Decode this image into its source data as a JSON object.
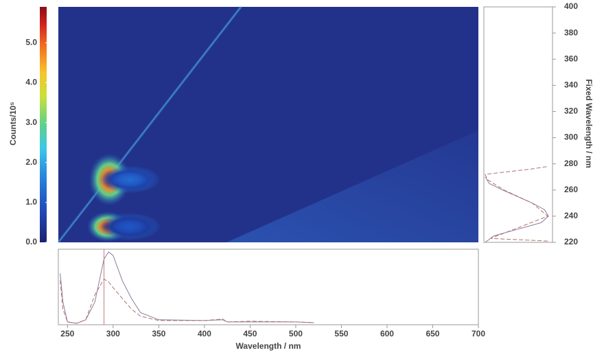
{
  "chart_data": [
    {
      "type": "heatmap",
      "colorbar_label": "Counts/10⁵",
      "clim": [
        0,
        5.9
      ],
      "cticks": [
        {
          "value": 0,
          "label": "0.0"
        },
        {
          "value": 1,
          "label": "1.0"
        },
        {
          "value": 2,
          "label": "2.0"
        },
        {
          "value": 3,
          "label": "3.0"
        },
        {
          "value": 4,
          "label": "4.0"
        },
        {
          "value": 5,
          "label": "5.0"
        }
      ],
      "xlim": [
        240,
        700
      ],
      "ylim": [
        220,
        400
      ],
      "peaks": {
        "x": [
          294,
          296,
          318,
          318
        ],
        "y": [
          232,
          268,
          232,
          268
        ],
        "values": [
          5.9,
          5.9,
          1.0,
          1.3
        ]
      },
      "scatter_line": {
        "x": [
          240,
          440
        ],
        "y": [
          220,
          400
        ]
      }
    },
    {
      "type": "line",
      "orientation": "vertical",
      "ylabel": "Fixed Wavelength / nm",
      "xlim": [
        0,
        1
      ],
      "ylim": [
        220,
        400
      ],
      "yticks": [
        220,
        240,
        260,
        280,
        300,
        320,
        340,
        360,
        380,
        400
      ],
      "series": [
        {
          "color": "#8a7a9a",
          "dash": false,
          "y": [
            220,
            225,
            230,
            235,
            240,
            245,
            250,
            255,
            260,
            265,
            270
          ],
          "values": [
            0.02,
            0.15,
            0.5,
            0.85,
            0.96,
            0.9,
            0.72,
            0.5,
            0.28,
            0.08,
            0.02
          ]
        },
        {
          "color": "#b07070",
          "dash": true,
          "y": [
            221,
            223,
            230,
            240,
            250,
            260,
            268,
            272,
            276,
            278
          ],
          "values": [
            0.95,
            0.1,
            0.45,
            0.95,
            0.72,
            0.3,
            0.05,
            0.02,
            0.7,
            0.95
          ]
        }
      ]
    },
    {
      "type": "line",
      "xlabel": "Wavelength / nm",
      "xlim": [
        240,
        700
      ],
      "ylim": [
        0,
        1
      ],
      "xticks": [
        250,
        300,
        350,
        400,
        450,
        500,
        550,
        600,
        650,
        700
      ],
      "marker_x": 290,
      "x": [
        242,
        245,
        250,
        260,
        270,
        280,
        290,
        295,
        300,
        310,
        320,
        330,
        350,
        400,
        420,
        425,
        450,
        500,
        520
      ],
      "series": [
        {
          "color": "#8a7a9a",
          "dash": false,
          "values": [
            0.7,
            0.3,
            0.02,
            0,
            0.05,
            0.3,
            0.9,
            1.0,
            0.95,
            0.6,
            0.35,
            0.15,
            0.05,
            0.04,
            0.05,
            0.02,
            0.02,
            0.02,
            0.01
          ]
        },
        {
          "color": "#b07070",
          "dash": true,
          "values": [
            0.6,
            0.2,
            0.02,
            0,
            0.05,
            0.4,
            0.62,
            0.58,
            0.5,
            0.35,
            0.2,
            0.1,
            0.04,
            0.04,
            0.06,
            0.02,
            0.03,
            0.02,
            0.01
          ]
        }
      ]
    }
  ]
}
